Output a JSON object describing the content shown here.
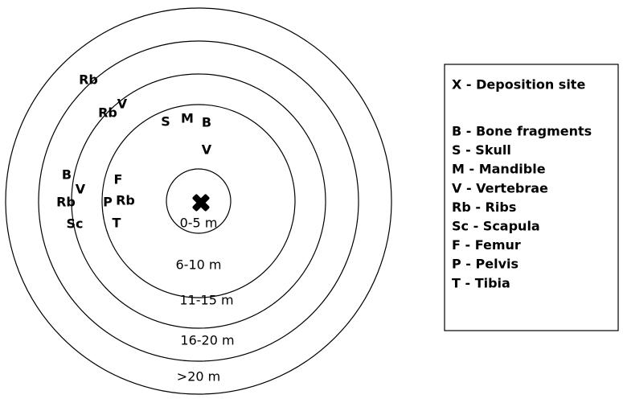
{
  "rings": [
    {
      "label": "0-5 m"
    },
    {
      "label": "6-10 m"
    },
    {
      "label": "11-15 m"
    },
    {
      "label": "16-20 m"
    },
    {
      "label": ">20 m"
    }
  ],
  "markers": [
    {
      "label": "Rb"
    },
    {
      "label": "Rb"
    },
    {
      "label": "V"
    },
    {
      "label": "S"
    },
    {
      "label": "M"
    },
    {
      "label": "B"
    },
    {
      "label": "V"
    },
    {
      "label": "B"
    },
    {
      "label": "V"
    },
    {
      "label": "Rb"
    },
    {
      "label": "Sc"
    },
    {
      "label": "F"
    },
    {
      "label": "P"
    },
    {
      "label": "Rb"
    },
    {
      "label": "T"
    }
  ],
  "legend": {
    "site": "X - Deposition site",
    "items": [
      "B - Bone fragments",
      "S - Skull",
      "M - Mandible",
      "V - Vertebrae",
      "Rb - Ribs",
      "Sc - Scapula",
      "F - Femur",
      "P - Pelvis",
      "T - Tibia"
    ]
  }
}
